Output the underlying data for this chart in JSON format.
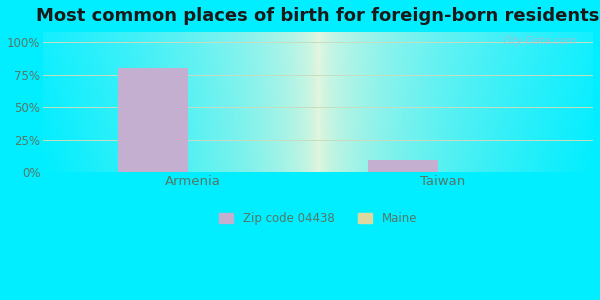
{
  "title": "Most common places of birth for foreign-born residents",
  "categories": [
    "Armenia",
    "Taiwan"
  ],
  "zip_values": [
    80,
    9
  ],
  "maine_values": [
    0.3,
    0.3
  ],
  "zip_color": "#c5afd0",
  "maine_color": "#ddd8a0",
  "zip_label": "Zip code 04438",
  "maine_label": "Maine",
  "yticks": [
    0,
    25,
    50,
    75,
    100
  ],
  "ytick_labels": [
    "0%",
    "25%",
    "50%",
    "75%",
    "100%"
  ],
  "bar_width": 0.28,
  "bg_outer": "#00eeff",
  "title_fontsize": 13,
  "tick_color": "#557766",
  "grid_color": "#c8ddc0",
  "watermark": "City-Data.com",
  "ylim": [
    0,
    108
  ]
}
